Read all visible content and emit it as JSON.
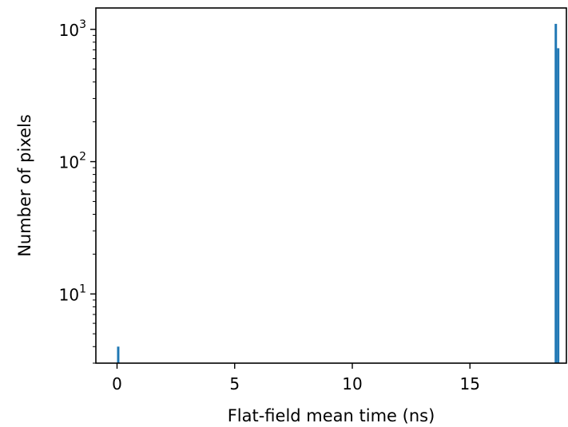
{
  "chart_data": {
    "type": "bar",
    "title": "",
    "xlabel": "Flat-field mean time (ns)",
    "ylabel": "Number of pixels",
    "xscale": "linear",
    "yscale": "log",
    "xlim": [
      -0.9,
      19.1
    ],
    "ylim": [
      3,
      1450
    ],
    "xticks": [
      0,
      5,
      10,
      15
    ],
    "xtick_labels": [
      "0",
      "5",
      "10",
      "15"
    ],
    "yticks": [
      10,
      100,
      1000
    ],
    "ytick_labels": [
      {
        "base": "10",
        "exp": "1"
      },
      {
        "base": "10",
        "exp": "2"
      },
      {
        "base": "10",
        "exp": "3"
      }
    ],
    "grid": false,
    "legend": "none",
    "bar_color": "#1f77b4",
    "bin_width": 0.1,
    "bars": [
      {
        "x": 0.05,
        "value": 4
      },
      {
        "x": 18.65,
        "value": 1100
      },
      {
        "x": 18.75,
        "value": 720
      }
    ]
  }
}
